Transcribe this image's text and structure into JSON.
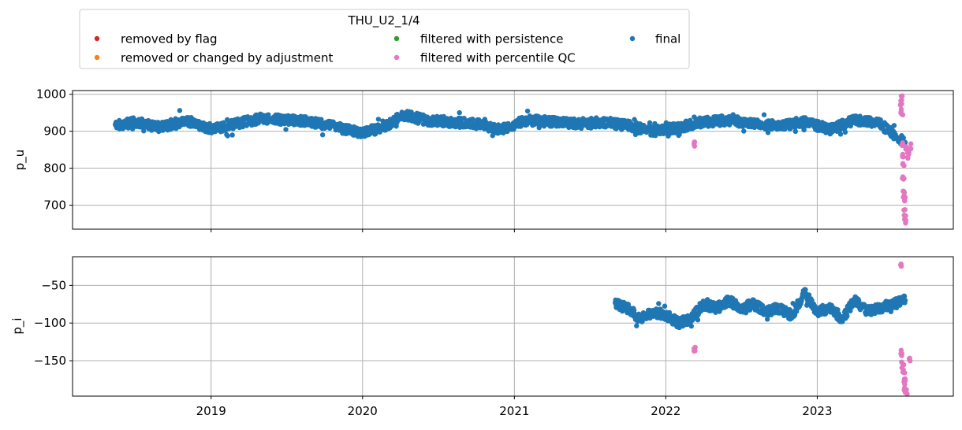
{
  "chart_data": {
    "type": "scatter",
    "legend": {
      "title": "THU_U2_1/4",
      "placement": "top-left, above plots",
      "entries": [
        {
          "label": "removed by flag",
          "color": "#d62728"
        },
        {
          "label": "removed or changed by adjustment",
          "color": "#ff7f0e"
        },
        {
          "label": "filtered with persistence",
          "color": "#2ca02c"
        },
        {
          "label": "filtered with percentile QC",
          "color": "#e377c2"
        },
        {
          "label": "final",
          "color": "#1f77b4"
        }
      ]
    },
    "x_axis": {
      "type": "date",
      "range": [
        "2018-02-01",
        "2023-11-25"
      ],
      "tick_labels": [
        "2019",
        "2020",
        "2021",
        "2022",
        "2023"
      ],
      "grid": true
    },
    "panels": [
      {
        "ylabel": "p_u",
        "ylim": [
          635,
          1010
        ],
        "yticks": [
          700,
          800,
          900,
          1000
        ],
        "grid": true,
        "series": [
          {
            "name": "final",
            "color": "#1f77b4",
            "description": "continuous data 2018-05 to 2023-08, mostly 890-950 hPa",
            "points": [
              [
                "2018-05-15",
                915
              ],
              [
                "2018-07-01",
                925
              ],
              [
                "2018-09-01",
                910
              ],
              [
                "2018-11-01",
                930
              ],
              [
                "2019-01-01",
                905
              ],
              [
                "2019-03-01",
                920
              ],
              [
                "2019-05-01",
                935
              ],
              [
                "2019-07-01",
                930
              ],
              [
                "2019-09-01",
                925
              ],
              [
                "2019-11-01",
                910
              ],
              [
                "2020-01-01",
                895
              ],
              [
                "2020-03-01",
                915
              ],
              [
                "2020-04-05",
                945
              ],
              [
                "2020-06-01",
                930
              ],
              [
                "2020-08-01",
                925
              ],
              [
                "2020-10-01",
                920
              ],
              [
                "2020-12-01",
                905
              ],
              [
                "2021-02-01",
                930
              ],
              [
                "2021-04-01",
                925
              ],
              [
                "2021-06-01",
                920
              ],
              [
                "2021-08-01",
                925
              ],
              [
                "2021-10-01",
                915
              ],
              [
                "2021-12-01",
                900
              ],
              [
                "2022-02-01",
                910
              ],
              [
                "2022-04-01",
                925
              ],
              [
                "2022-06-01",
                930
              ],
              [
                "2022-08-01",
                920
              ],
              [
                "2022-10-01",
                915
              ],
              [
                "2022-12-01",
                925
              ],
              [
                "2023-02-01",
                905
              ],
              [
                "2023-04-01",
                930
              ],
              [
                "2023-06-01",
                920
              ],
              [
                "2023-08-01",
                870
              ]
            ]
          },
          {
            "name": "filtered with percentile QC",
            "color": "#e377c2",
            "description": "outliers near 2022-03 and 2023-07/08",
            "points": [
              [
                "2022-03-10",
                865
              ],
              [
                "2023-07-22",
                990
              ],
              [
                "2023-07-23",
                965
              ],
              [
                "2023-07-24",
                945
              ],
              [
                "2023-07-25",
                860
              ],
              [
                "2023-07-26",
                835
              ],
              [
                "2023-07-27",
                810
              ],
              [
                "2023-07-28",
                770
              ],
              [
                "2023-07-29",
                730
              ],
              [
                "2023-07-30",
                720
              ],
              [
                "2023-07-31",
                680
              ],
              [
                "2023-08-01",
                655
              ],
              [
                "2023-08-05",
                850
              ],
              [
                "2023-08-08",
                835
              ],
              [
                "2023-08-12",
                860
              ]
            ]
          }
        ]
      },
      {
        "ylabel": "p_i",
        "ylim": [
          -197,
          -12
        ],
        "yticks": [
          -50,
          -100,
          -150
        ],
        "grid": true,
        "series": [
          {
            "name": "final",
            "color": "#1f77b4",
            "description": "data 2021-09 to 2023-08, mostly -110 to -60",
            "points": [
              [
                "2021-09-01",
                -75
              ],
              [
                "2021-10-01",
                -80
              ],
              [
                "2021-11-01",
                -95
              ],
              [
                "2021-12-01",
                -85
              ],
              [
                "2022-01-01",
                -90
              ],
              [
                "2022-02-01",
                -100
              ],
              [
                "2022-03-01",
                -95
              ],
              [
                "2022-04-01",
                -75
              ],
              [
                "2022-05-01",
                -80
              ],
              [
                "2022-06-01",
                -70
              ],
              [
                "2022-07-01",
                -80
              ],
              [
                "2022-08-01",
                -75
              ],
              [
                "2022-09-01",
                -85
              ],
              [
                "2022-10-01",
                -80
              ],
              [
                "2022-11-01",
                -90
              ],
              [
                "2022-12-01",
                -60
              ],
              [
                "2023-01-01",
                -85
              ],
              [
                "2023-02-01",
                -80
              ],
              [
                "2023-03-01",
                -95
              ],
              [
                "2023-04-01",
                -70
              ],
              [
                "2023-05-01",
                -85
              ],
              [
                "2023-06-01",
                -80
              ],
              [
                "2023-07-01",
                -75
              ],
              [
                "2023-08-01",
                -70
              ]
            ]
          },
          {
            "name": "filtered with percentile QC",
            "color": "#e377c2",
            "description": "outliers near 2022-03 and 2023-07/08",
            "points": [
              [
                "2022-03-12",
                -133
              ],
              [
                "2023-07-22",
                -22
              ],
              [
                "2023-07-24",
                -140
              ],
              [
                "2023-07-26",
                -155
              ],
              [
                "2023-07-28",
                -165
              ],
              [
                "2023-07-30",
                -175
              ],
              [
                "2023-08-01",
                -185
              ],
              [
                "2023-08-03",
                -190
              ],
              [
                "2023-08-10",
                -150
              ]
            ]
          }
        ]
      }
    ]
  }
}
